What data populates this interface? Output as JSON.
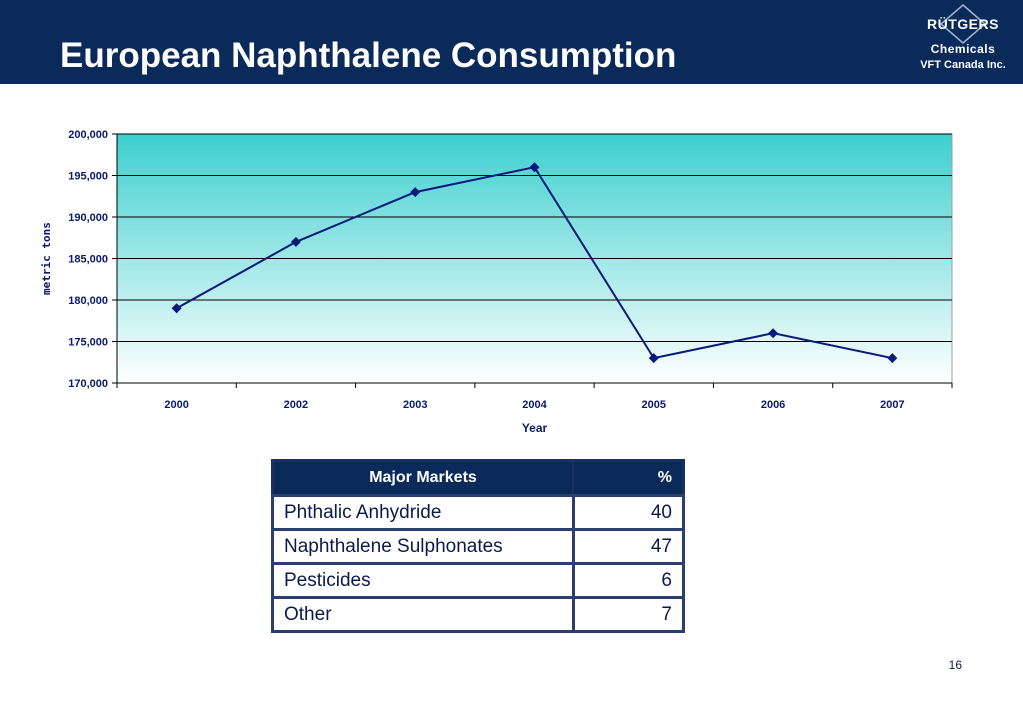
{
  "header": {
    "title": "European Naphthalene Consumption",
    "logo": {
      "brand": "RÜTGERS",
      "sub": "Chemicals",
      "company": "VFT Canada Inc."
    }
  },
  "colors": {
    "header_bg": "#0a2a5a",
    "plot_top": "#3ecfcf",
    "plot_bottom": "#ffffff",
    "line": "#0a1a7a",
    "axis_text": "#0a1a6b"
  },
  "chart_data": {
    "type": "line",
    "title": "",
    "xlabel": "Year",
    "ylabel": "metric tons",
    "categories": [
      "2000",
      "2002",
      "2003",
      "2004",
      "2005",
      "2006",
      "2007"
    ],
    "values": [
      179000,
      187000,
      193000,
      196000,
      173000,
      176000,
      173000
    ],
    "ylim": [
      170000,
      200000
    ],
    "ytick_values": [
      170000,
      175000,
      180000,
      185000,
      190000,
      195000,
      200000
    ],
    "ytick_labels": [
      "170,000",
      "175,000",
      "180,000",
      "185,000",
      "190,000",
      "195,000",
      "200,000"
    ],
    "grid": true,
    "legend": "none",
    "marker": "diamond"
  },
  "table": {
    "headers": [
      "Major Markets",
      "%"
    ],
    "rows": [
      {
        "market": "Phthalic Anhydride",
        "pct": "40"
      },
      {
        "market": "Naphthalene Sulphonates",
        "pct": "47"
      },
      {
        "market": "Pesticides",
        "pct": "6"
      },
      {
        "market": "Other",
        "pct": "7"
      }
    ]
  },
  "footer": {
    "page_number": "16"
  }
}
